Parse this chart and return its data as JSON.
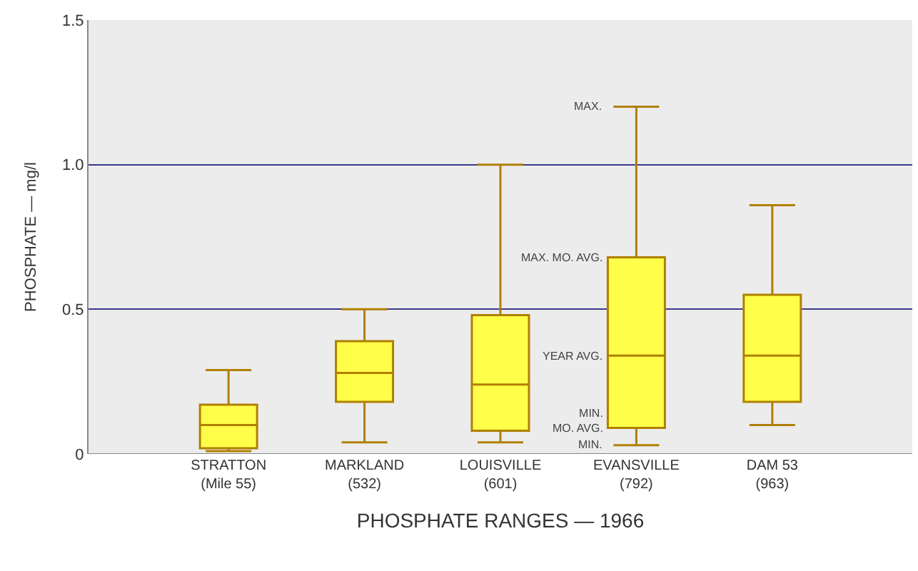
{
  "chart_data": {
    "type": "box",
    "xlabel": "PHOSPHATE RANGES — 1966",
    "ylabel": "PHOSPHATE — mg/l",
    "categories": [
      "STRATTON\n(Mile 55)",
      "MARKLAND\n(532)",
      "LOUISVILLE\n(601)",
      "EVANSVILLE\n(792)",
      "DAM 53\n(963)"
    ],
    "color": "#ffff4a",
    "boxes": [
      {
        "low": 0.01,
        "q1": 0.02,
        "median": 0.1,
        "q3": 0.17,
        "high": 0.29
      },
      {
        "low": 0.04,
        "q1": 0.18,
        "median": 0.28,
        "q3": 0.39,
        "high": 0.5
      },
      {
        "low": 0.04,
        "q1": 0.08,
        "median": 0.24,
        "q3": 0.48,
        "high": 1.0
      },
      {
        "low": 0.03,
        "q1": 0.09,
        "median": 0.34,
        "q3": 0.68,
        "high": 1.2
      },
      {
        "low": 0.1,
        "q1": 0.18,
        "median": 0.34,
        "q3": 0.55,
        "high": 0.86
      }
    ],
    "annotations": [
      "MAX.",
      "MAX. MO. AVG.",
      "YEAR AVG.",
      "MIN.\nMO. AVG.",
      "MIN."
    ],
    "ylim": [
      0,
      1.5
    ],
    "yticks": [
      0,
      0.5,
      {
        "value": 1.0,
        "label": "1.0"
      },
      1.5
    ],
    "grid": "y"
  }
}
